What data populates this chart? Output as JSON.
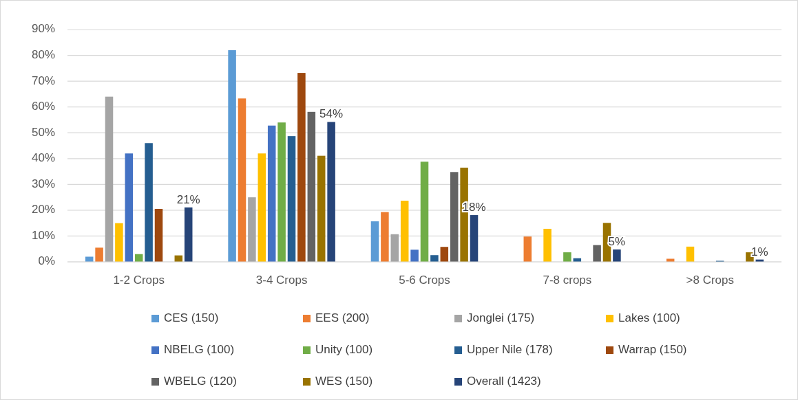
{
  "chart_data": {
    "type": "bar",
    "categories": [
      "1-2 Crops",
      "3-4 Crops",
      "5-6 Crops",
      "7-8 crops",
      ">8 Crops"
    ],
    "series": [
      {
        "name": "CES (150)",
        "color": "#5b9bd5",
        "values": [
          2,
          82,
          15.7,
          0,
          0
        ]
      },
      {
        "name": "EES (200)",
        "color": "#ed7d31",
        "values": [
          5.5,
          63.3,
          19.3,
          9.8,
          1.2
        ]
      },
      {
        "name": "Jonglei (175)",
        "color": "#a5a5a5",
        "values": [
          64,
          25,
          10.7,
          0,
          0
        ]
      },
      {
        "name": "Lakes (100)",
        "color": "#ffc000",
        "values": [
          15,
          42,
          23.7,
          12.8,
          5.9
        ]
      },
      {
        "name": "NBELG (100)",
        "color": "#4472c4",
        "values": [
          42,
          52.8,
          4.7,
          0,
          0
        ]
      },
      {
        "name": "Unity (100)",
        "color": "#70ad47",
        "values": [
          3,
          54,
          38.8,
          3.7,
          0
        ]
      },
      {
        "name": "Upper Nile (178)",
        "color": "#255e91",
        "values": [
          46,
          48.7,
          2.6,
          1.4,
          0.4
        ]
      },
      {
        "name": "Warrap (150)",
        "color": "#9e480e",
        "values": [
          20.5,
          73.2,
          5.8,
          0,
          0
        ]
      },
      {
        "name": "WBELG (120)",
        "color": "#636363",
        "values": [
          0,
          58.1,
          34.8,
          6.5,
          0
        ]
      },
      {
        "name": "WES (150)",
        "color": "#997300",
        "values": [
          2.5,
          41.1,
          36.5,
          15.1,
          3.7
        ]
      },
      {
        "name": "Overall (1423)",
        "color": "#264478",
        "values": [
          21.1,
          54.2,
          18.1,
          4.8,
          0.9
        ],
        "value_labels": [
          "21%",
          "54%",
          "18%",
          "5%",
          "1%"
        ]
      }
    ],
    "ylim": [
      0,
      90
    ],
    "yticks": [
      {
        "value": 0,
        "label": "0%"
      },
      {
        "value": 10,
        "label": "10%"
      },
      {
        "value": 20,
        "label": "20%"
      },
      {
        "value": 30,
        "label": "30%"
      },
      {
        "value": 40,
        "label": "40%"
      },
      {
        "value": 50,
        "label": "50%"
      },
      {
        "value": 60,
        "label": "60%"
      },
      {
        "value": 70,
        "label": "70%"
      },
      {
        "value": 80,
        "label": "80%"
      },
      {
        "value": 90,
        "label": "90%"
      }
    ],
    "grid": "y",
    "legend": "bottom"
  }
}
